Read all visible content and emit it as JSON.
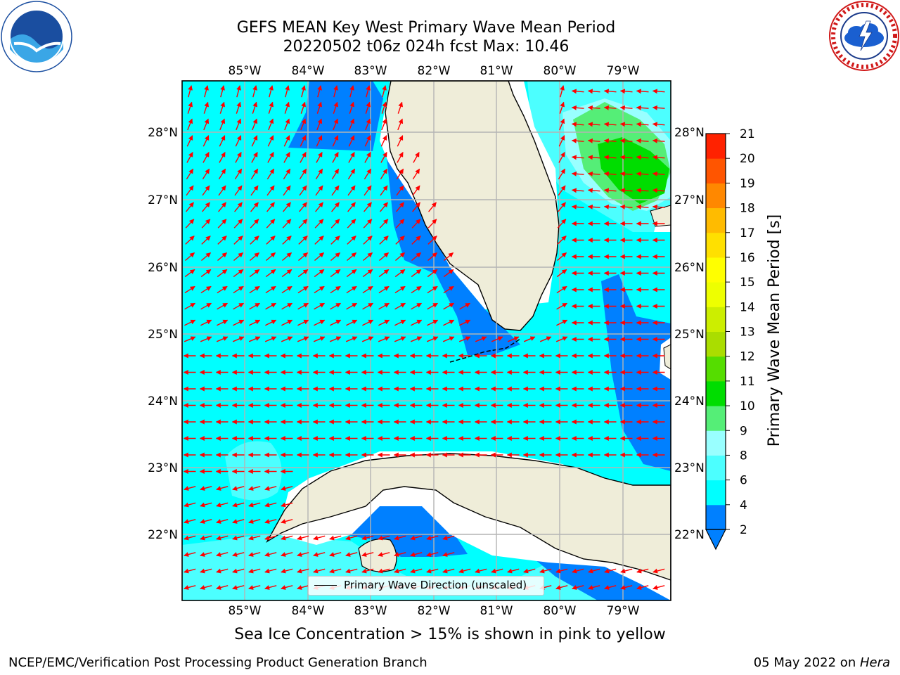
{
  "title_line1": "GEFS MEAN Key West Primary Wave Mean Period",
  "title_line2": "20220502 t06z 024h fcst   Max: 10.46",
  "map": {
    "lon_labels": [
      "85°W",
      "84°W",
      "83°W",
      "82°W",
      "81°W",
      "80°W",
      "79°W"
    ],
    "lat_labels": [
      "28°N",
      "27°N",
      "26°N",
      "25°N",
      "24°N",
      "23°N",
      "22°N"
    ],
    "lon_range": [
      -86.0,
      -78.25
    ],
    "lat_range": [
      21.05,
      28.75
    ],
    "colors": {
      "ocean_main": "#00ffff",
      "ocean_deep": "#0080ff",
      "ocean_light": "#4cffff",
      "land": "#efedd9",
      "arrow": "#ff0000",
      "grid": "#b4b4b4"
    }
  },
  "legend": {
    "label": "Primary Wave Direction (unscaled)"
  },
  "colorbar": {
    "label": "Primary Wave Mean Period [s]",
    "ticks": [
      2,
      4,
      6,
      8,
      9,
      10,
      11,
      12,
      13,
      14,
      15,
      16,
      17,
      18,
      19,
      20,
      21
    ],
    "colors": [
      "#0080ff",
      "#00ffff",
      "#4cffff",
      "#99ffff",
      "#55ee77",
      "#00dd00",
      "#55dd00",
      "#aadd00",
      "#ccee00",
      "#eeff00",
      "#ffff00",
      "#ffe000",
      "#ffbb00",
      "#ff8800",
      "#ff5500",
      "#ff2200"
    ]
  },
  "ice_note": "Sea Ice Concentration > 15% is shown in pink to yellow",
  "credit": "NCEP/EMC/Verification Post Processing Product Generation Branch",
  "date_text": "05 May 2022 on ",
  "date_host": "Hera"
}
